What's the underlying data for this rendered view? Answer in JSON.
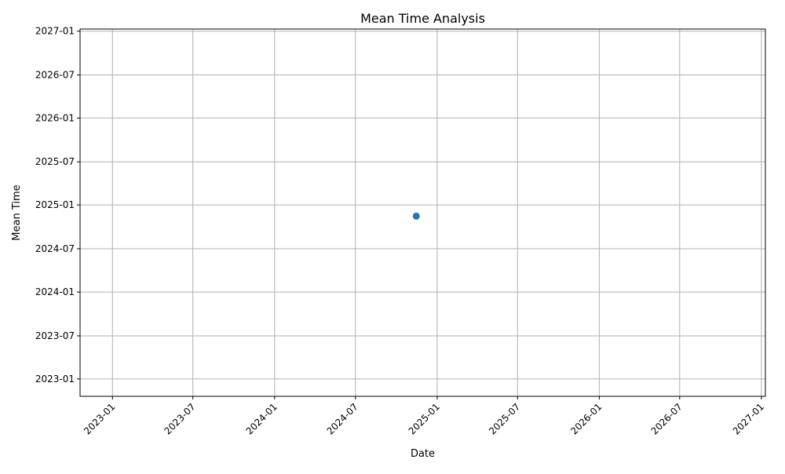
{
  "chart_data": {
    "type": "scatter",
    "title": "Mean Time Analysis",
    "xlabel": "Date",
    "ylabel": "Mean Time",
    "x_axis": {
      "scale": "date",
      "range": [
        "2022-10-20",
        "2027-01-10"
      ],
      "ticks": [
        "2023-01",
        "2023-07",
        "2024-01",
        "2024-07",
        "2025-01",
        "2025-07",
        "2026-01",
        "2026-07",
        "2027-01"
      ],
      "tick_rotation": 45
    },
    "y_axis": {
      "scale": "date",
      "range": [
        "2022-10-20",
        "2027-01-10"
      ],
      "ticks": [
        "2023-01",
        "2023-07",
        "2024-01",
        "2024-07",
        "2025-01",
        "2025-07",
        "2026-01",
        "2026-07",
        "2027-01"
      ]
    },
    "grid": true,
    "series": [
      {
        "color": "#1f77b4",
        "marker": "circle",
        "points": [
          {
            "x": "2024-11-15",
            "y": "2024-11-15"
          }
        ]
      }
    ]
  },
  "colors": {
    "point": "#1f77b4",
    "grid": "#b0b0b0",
    "axis": "#000000"
  }
}
